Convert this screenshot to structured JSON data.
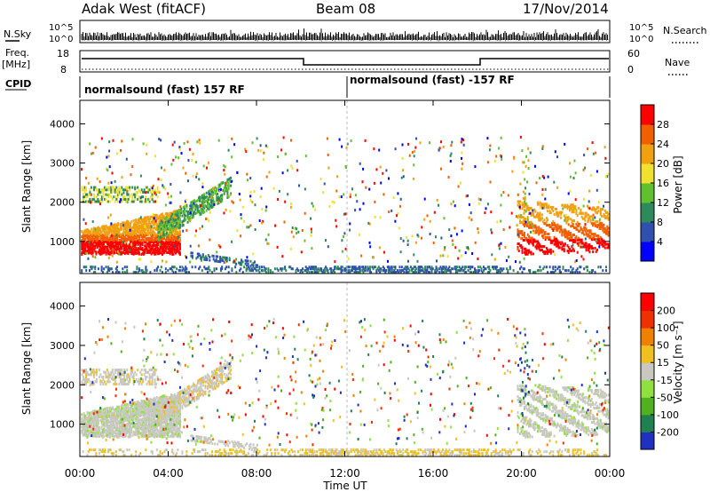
{
  "header": {
    "title": "Adak West (fitACF)",
    "beam": "Beam 08",
    "date": "17/Nov/2014"
  },
  "chart_data": [
    {
      "type": "line",
      "panel": "noise",
      "left_label": "N.Sky",
      "right_label": "N.Search",
      "left_ticks": [
        "10^5",
        "10^0"
      ],
      "right_ticks": [
        "10^5",
        "10^0"
      ]
    },
    {
      "type": "line",
      "panel": "frequency-nave",
      "left_label_top": "Freq.",
      "left_label_bottom": "[MHz]",
      "right_label": "Nave",
      "left_ticks": [
        18,
        8
      ],
      "right_ticks": [
        60,
        0
      ],
      "frequency_steps": [
        {
          "start": "00:00",
          "end": "10:00",
          "level": "high"
        },
        {
          "start": "10:00",
          "end": "18:00",
          "level": "low"
        },
        {
          "start": "18:00",
          "end": "24:00",
          "level": "high"
        }
      ]
    },
    {
      "type": "table",
      "panel": "cpid",
      "label": "CPID",
      "segments": [
        {
          "start": "00:00",
          "end": "12:00",
          "text": "normalsound (fast) 157 RF"
        },
        {
          "start": "12:00",
          "end": "24:00",
          "text": "normalsound (fast) -157 RF"
        }
      ]
    },
    {
      "type": "heatmap",
      "panel": "power",
      "ylabel": "Slant Range [km]",
      "ylim": [
        180,
        4600
      ],
      "yticks": [
        1000,
        2000,
        3000,
        4000
      ],
      "colorbar_label": "Power [dB]",
      "colorbar_ticks": [
        4,
        8,
        12,
        16,
        20,
        24,
        28
      ],
      "colors": [
        "#0000ff",
        "#3050b0",
        "#2e8a5a",
        "#60c030",
        "#f0e030",
        "#f0a010",
        "#f06000",
        "#ff0000"
      ]
    },
    {
      "type": "heatmap",
      "panel": "velocity",
      "ylabel": "Slant Range [km]",
      "xlabel": "Time UT",
      "ylim": [
        180,
        4600
      ],
      "yticks": [
        1000,
        2000,
        3000,
        4000
      ],
      "xticks": [
        "00:00",
        "04:00",
        "08:00",
        "12:00",
        "16:00",
        "20:00",
        "00:00"
      ],
      "colorbar_label": "Velocity [m s⁻¹]",
      "colorbar_ticks": [
        200,
        100,
        50,
        15,
        -15,
        -50,
        -100,
        -200
      ],
      "colors": [
        "#2030c0",
        "#208050",
        "#50b020",
        "#90e040",
        "#c8c8c0",
        "#f0c020",
        "#f08000",
        "#f03000",
        "#ff0000"
      ]
    }
  ]
}
